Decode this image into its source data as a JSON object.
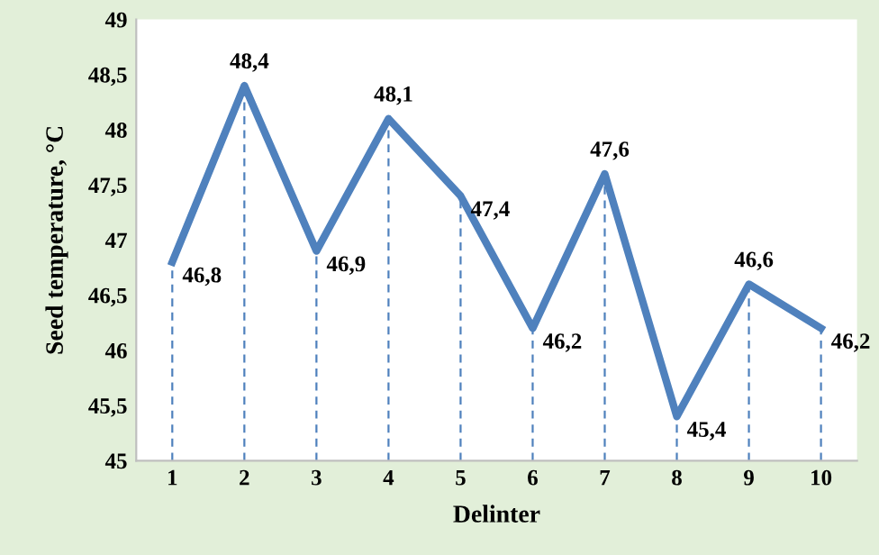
{
  "chart_data": {
    "type": "line",
    "xlabel": "Delinter",
    "ylabel": "Seed temperature, °C",
    "categories": [
      "1",
      "2",
      "3",
      "4",
      "5",
      "6",
      "7",
      "8",
      "9",
      "10"
    ],
    "series": [
      {
        "color": "#4f81bd",
        "values": [
          46.8,
          48.4,
          46.9,
          48.1,
          47.4,
          46.2,
          47.6,
          45.4,
          46.6,
          46.2
        ],
        "value_labels": [
          "46,8",
          "48,4",
          "46,9",
          "48,1",
          "47,4",
          "46,2",
          "47,6",
          "45,4",
          "46,6",
          "46,2"
        ]
      }
    ],
    "ylim": [
      45,
      49
    ],
    "yticks": [
      45,
      {
        "value": 45.5,
        "label": "45,5"
      },
      46,
      {
        "value": 46.5,
        "label": "46,5"
      },
      47,
      {
        "value": 47.5,
        "label": "47,5"
      },
      48,
      {
        "value": 48.5,
        "label": "48,5"
      },
      49
    ],
    "grid": "x",
    "legend": false,
    "marker": "none",
    "line_style": "solid"
  }
}
